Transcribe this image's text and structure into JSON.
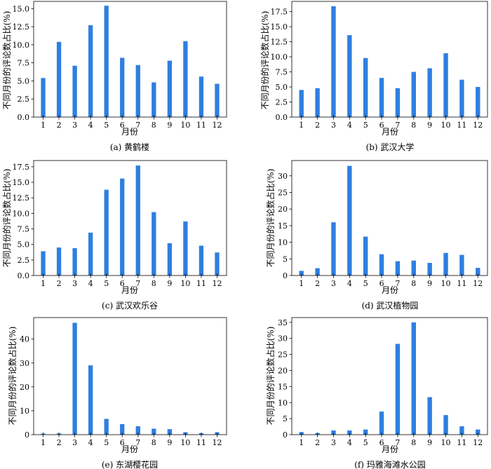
{
  "chart_data": [
    {
      "type": "bar",
      "caption": "(a) 黄鹤楼",
      "xlabel": "月份",
      "ylabel": "不同月份的评论数占比(%)",
      "categories": [
        "1",
        "2",
        "3",
        "4",
        "5",
        "6",
        "7",
        "8",
        "9",
        "10",
        "11",
        "12"
      ],
      "values": [
        5.4,
        10.4,
        7.1,
        12.7,
        15.4,
        8.2,
        7.2,
        4.8,
        7.8,
        10.5,
        5.6,
        4.6
      ],
      "ylim": [
        0,
        16.0
      ],
      "yticks": [
        0.0,
        2.5,
        5.0,
        7.5,
        10.0,
        12.5,
        15.0
      ],
      "ytick_labels": [
        "0.0",
        "2.5",
        "5.0",
        "7.5",
        "10.0",
        "12.5",
        "15.0"
      ],
      "bar_color": "#2e7fe0",
      "grid": false
    },
    {
      "type": "bar",
      "caption": "(b) 武汉大学",
      "xlabel": "月份",
      "ylabel": "不同月份的评论数占比(%)",
      "categories": [
        "1",
        "2",
        "3",
        "4",
        "5",
        "6",
        "7",
        "8",
        "9",
        "10",
        "11",
        "12"
      ],
      "values": [
        4.5,
        4.8,
        18.4,
        13.6,
        9.8,
        6.5,
        4.8,
        7.5,
        8.1,
        10.6,
        6.2,
        5.0
      ],
      "ylim": [
        0,
        19.2
      ],
      "yticks": [
        0.0,
        2.5,
        5.0,
        7.5,
        10.0,
        12.5,
        15.0,
        17.5
      ],
      "ytick_labels": [
        "0.0",
        "2.5",
        "5.0",
        "7.5",
        "10.0",
        "12.5",
        "15.0",
        "17.5"
      ],
      "bar_color": "#2e7fe0",
      "grid": false
    },
    {
      "type": "bar",
      "caption": "(c) 武汉欢乐谷",
      "xlabel": "月份",
      "ylabel": "不同月份的评论数占比(%)",
      "categories": [
        "1",
        "2",
        "3",
        "4",
        "5",
        "6",
        "7",
        "8",
        "9",
        "10",
        "11",
        "12"
      ],
      "values": [
        3.9,
        4.5,
        4.4,
        6.9,
        13.8,
        15.6,
        17.7,
        10.2,
        5.2,
        8.7,
        4.8,
        3.7
      ],
      "ylim": [
        0,
        18.5
      ],
      "yticks": [
        0.0,
        2.5,
        5.0,
        7.5,
        10.0,
        12.5,
        15.0,
        17.5
      ],
      "ytick_labels": [
        "0.0",
        "2.5",
        "5.0",
        "7.5",
        "10.0",
        "12.5",
        "15.0",
        "17.5"
      ],
      "bar_color": "#2e7fe0",
      "grid": false
    },
    {
      "type": "bar",
      "caption": "(d) 武汉植物园",
      "xlabel": "月份",
      "ylabel": "不同月份的评论数占比(%)",
      "categories": [
        "1",
        "2",
        "3",
        "4",
        "5",
        "6",
        "7",
        "8",
        "9",
        "10",
        "11",
        "12"
      ],
      "values": [
        1.4,
        2.2,
        16.0,
        33.0,
        11.7,
        6.4,
        4.3,
        4.5,
        3.8,
        6.8,
        6.2,
        2.3
      ],
      "ylim": [
        0,
        34.6
      ],
      "yticks": [
        0,
        5,
        10,
        15,
        20,
        25,
        30
      ],
      "ytick_labels": [
        "0",
        "5",
        "10",
        "15",
        "20",
        "25",
        "30"
      ],
      "bar_color": "#2e7fe0",
      "grid": false
    },
    {
      "type": "bar",
      "caption": "(e) 东湖樱花园",
      "xlabel": "月份",
      "ylabel": "不同月份的评论数占比(%)",
      "categories": [
        "1",
        "2",
        "3",
        "4",
        "5",
        "6",
        "7",
        "8",
        "9",
        "10",
        "11",
        "12"
      ],
      "values": [
        0.4,
        0.5,
        46.8,
        29.0,
        6.6,
        4.4,
        3.5,
        2.5,
        2.3,
        1.0,
        0.6,
        1.0
      ],
      "ylim": [
        0,
        49.0
      ],
      "yticks": [
        0,
        10,
        20,
        30,
        40
      ],
      "ytick_labels": [
        "0",
        "10",
        "20",
        "30",
        "40"
      ],
      "bar_color": "#2e7fe0",
      "grid": false
    },
    {
      "type": "bar",
      "caption": "(f) 玛雅海滩水公园",
      "xlabel": "月份",
      "ylabel": "不同月份的评论数占比(%)",
      "categories": [
        "1",
        "2",
        "3",
        "4",
        "5",
        "6",
        "7",
        "8",
        "9",
        "10",
        "11",
        "12"
      ],
      "values": [
        0.8,
        0.5,
        1.3,
        1.3,
        1.6,
        7.2,
        28.3,
        35.0,
        11.7,
        6.1,
        2.6,
        1.6
      ],
      "ylim": [
        0,
        36.5
      ],
      "yticks": [
        0,
        5,
        10,
        15,
        20,
        25,
        30,
        35
      ],
      "ytick_labels": [
        "0",
        "5",
        "10",
        "15",
        "20",
        "25",
        "30",
        "35"
      ],
      "bar_color": "#2e7fe0",
      "grid": false
    }
  ]
}
